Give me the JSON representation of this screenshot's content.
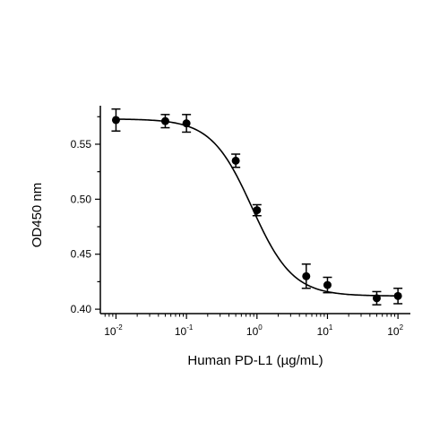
{
  "chart_data": {
    "type": "scatter",
    "xscale": "log",
    "xlim": [
      0.006,
      150
    ],
    "ylim": [
      0.396,
      0.585
    ],
    "xlabel": "Human PD-L1 (µg/mL)",
    "ylabel": "OD450 nm",
    "x_ticks": [
      {
        "value": 0.01,
        "base": "10",
        "exp": "-2"
      },
      {
        "value": 0.1,
        "base": "10",
        "exp": "-1"
      },
      {
        "value": 1,
        "base": "10",
        "exp": "0"
      },
      {
        "value": 10,
        "base": "10",
        "exp": "1"
      },
      {
        "value": 100,
        "base": "10",
        "exp": "2"
      }
    ],
    "y_ticks": [
      "0.40",
      "0.45",
      "0.50",
      "0.55"
    ],
    "series": [
      {
        "marker_color": "#000000",
        "points": [
          {
            "x": 0.01,
            "y": 0.572,
            "err": 0.01
          },
          {
            "x": 0.05,
            "y": 0.571,
            "err": 0.006
          },
          {
            "x": 0.1,
            "y": 0.569,
            "err": 0.008
          },
          {
            "x": 0.5,
            "y": 0.535,
            "err": 0.006
          },
          {
            "x": 1,
            "y": 0.49,
            "err": 0.005
          },
          {
            "x": 5,
            "y": 0.43,
            "err": 0.011
          },
          {
            "x": 10,
            "y": 0.422,
            "err": 0.007
          },
          {
            "x": 50,
            "y": 0.41,
            "err": 0.006
          },
          {
            "x": 100,
            "y": 0.412,
            "err": 0.007
          }
        ]
      }
    ],
    "fit": {
      "model": "4PL",
      "top": 0.573,
      "bottom": 0.412,
      "ec50": 0.85,
      "hill": 1.5
    },
    "grid": false,
    "legend": "none"
  }
}
